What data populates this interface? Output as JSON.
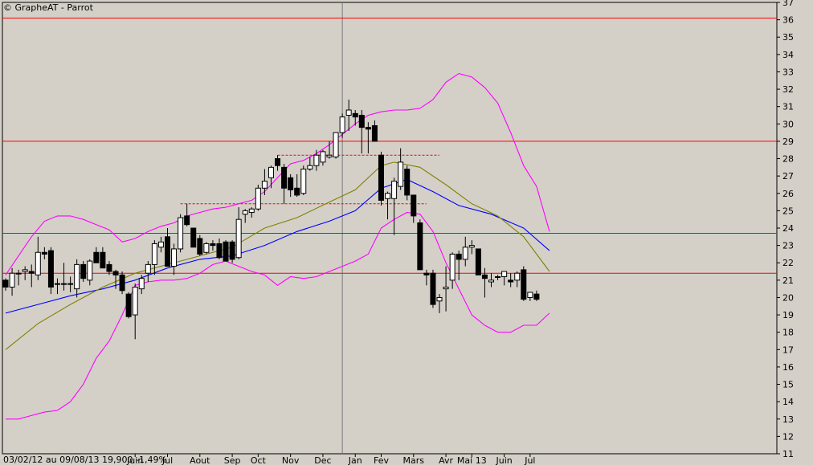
{
  "header": {
    "title": "© GrapheAT - Parrot"
  },
  "footer": {
    "info": "03/02/12 au 09/08/13  19,900  -1,49%"
  },
  "chart_data": {
    "type": "candlestick",
    "title": "© GrapheAT - Parrot",
    "ylim": [
      11,
      37
    ],
    "y_ticks": [
      11,
      12,
      13,
      14,
      15,
      16,
      17,
      18,
      19,
      20,
      21,
      22,
      23,
      24,
      25,
      26,
      27,
      28,
      29,
      30,
      31,
      32,
      33,
      34,
      35,
      36,
      37
    ],
    "x_tick_labels": [
      {
        "label": "Juin",
        "week": 20
      },
      {
        "label": "Jul",
        "week": 25
      },
      {
        "label": "Aout",
        "week": 30
      },
      {
        "label": "Sep",
        "week": 35
      },
      {
        "label": "Oct",
        "week": 39
      },
      {
        "label": "Nov",
        "week": 44
      },
      {
        "label": "Dec",
        "week": 49
      },
      {
        "label": "Jan",
        "week": 54
      },
      {
        "label": "Fev",
        "week": 58
      },
      {
        "label": "Mars",
        "week": 63
      },
      {
        "label": "Avr",
        "week": 68
      },
      {
        "label": "Mai 13",
        "week": 72
      },
      {
        "label": "Juin",
        "week": 77
      },
      {
        "label": "Jul",
        "week": 81
      }
    ],
    "year_separator_week": 52,
    "horizontal_lines": [
      36.1,
      29.0,
      23.7,
      21.4
    ],
    "dashed_lines": [
      {
        "y": 28.2,
        "from_week": 42,
        "to_week": 67
      },
      {
        "y": 25.4,
        "from_week": 27,
        "to_week": 65
      }
    ],
    "candles": [
      {
        "o": 21.0,
        "h": 21.1,
        "l": 20.4,
        "c": 20.6
      },
      {
        "o": 20.6,
        "h": 21.7,
        "l": 20.1,
        "c": 21.4
      },
      {
        "o": 21.4,
        "h": 21.6,
        "l": 20.7,
        "c": 21.4
      },
      {
        "o": 21.5,
        "h": 21.8,
        "l": 21.0,
        "c": 21.6
      },
      {
        "o": 21.5,
        "h": 21.9,
        "l": 20.6,
        "c": 21.4
      },
      {
        "o": 21.3,
        "h": 23.5,
        "l": 21.0,
        "c": 22.6
      },
      {
        "o": 22.6,
        "h": 22.9,
        "l": 22.2,
        "c": 22.5
      },
      {
        "o": 22.7,
        "h": 22.9,
        "l": 20.2,
        "c": 20.6
      },
      {
        "o": 20.8,
        "h": 21.1,
        "l": 20.2,
        "c": 20.8
      },
      {
        "o": 20.8,
        "h": 22.0,
        "l": 20.4,
        "c": 20.8
      },
      {
        "o": 20.8,
        "h": 21.2,
        "l": 20.3,
        "c": 20.8
      },
      {
        "o": 20.5,
        "h": 22.2,
        "l": 20.0,
        "c": 21.9
      },
      {
        "o": 21.9,
        "h": 22.1,
        "l": 20.9,
        "c": 21.1
      },
      {
        "o": 21.0,
        "h": 22.2,
        "l": 20.7,
        "c": 22.1
      },
      {
        "o": 22.6,
        "h": 22.9,
        "l": 22.1,
        "c": 22.0
      },
      {
        "o": 22.6,
        "h": 22.9,
        "l": 21.9,
        "c": 21.7
      },
      {
        "o": 21.9,
        "h": 22.1,
        "l": 21.3,
        "c": 21.5
      },
      {
        "o": 21.5,
        "h": 21.6,
        "l": 20.5,
        "c": 21.3
      },
      {
        "o": 21.3,
        "h": 21.5,
        "l": 20.2,
        "c": 20.4
      },
      {
        "o": 20.2,
        "h": 20.3,
        "l": 18.8,
        "c": 18.9
      },
      {
        "o": 19.0,
        "h": 20.8,
        "l": 17.6,
        "c": 20.6
      },
      {
        "o": 20.5,
        "h": 21.3,
        "l": 20.2,
        "c": 21.1
      },
      {
        "o": 21.4,
        "h": 22.1,
        "l": 20.9,
        "c": 21.9
      },
      {
        "o": 21.9,
        "h": 23.3,
        "l": 21.3,
        "c": 23.1
      },
      {
        "o": 22.9,
        "h": 23.5,
        "l": 22.6,
        "c": 23.2
      },
      {
        "o": 23.5,
        "h": 24.0,
        "l": 21.8,
        "c": 21.8
      },
      {
        "o": 21.8,
        "h": 23.1,
        "l": 21.3,
        "c": 22.8
      },
      {
        "o": 22.8,
        "h": 24.8,
        "l": 22.6,
        "c": 24.6
      },
      {
        "o": 24.7,
        "h": 25.4,
        "l": 24.1,
        "c": 24.2
      },
      {
        "o": 24.0,
        "h": 24.0,
        "l": 22.9,
        "c": 22.9
      },
      {
        "o": 23.4,
        "h": 23.6,
        "l": 22.4,
        "c": 22.5
      },
      {
        "o": 22.6,
        "h": 23.2,
        "l": 22.5,
        "c": 23.1
      },
      {
        "o": 23.1,
        "h": 23.3,
        "l": 22.7,
        "c": 23.0
      },
      {
        "o": 23.1,
        "h": 23.4,
        "l": 22.2,
        "c": 22.3
      },
      {
        "o": 23.2,
        "h": 23.3,
        "l": 22.1,
        "c": 22.1
      },
      {
        "o": 23.2,
        "h": 23.3,
        "l": 22.0,
        "c": 22.2
      },
      {
        "o": 22.3,
        "h": 25.2,
        "l": 22.2,
        "c": 24.5
      },
      {
        "o": 24.8,
        "h": 25.1,
        "l": 24.3,
        "c": 25.0
      },
      {
        "o": 24.9,
        "h": 25.2,
        "l": 24.6,
        "c": 25.1
      },
      {
        "o": 25.1,
        "h": 26.5,
        "l": 25.0,
        "c": 26.3
      },
      {
        "o": 26.3,
        "h": 27.4,
        "l": 25.9,
        "c": 26.7
      },
      {
        "o": 26.9,
        "h": 27.6,
        "l": 26.3,
        "c": 27.5
      },
      {
        "o": 28.0,
        "h": 28.2,
        "l": 27.3,
        "c": 27.6
      },
      {
        "o": 27.5,
        "h": 27.7,
        "l": 25.4,
        "c": 26.3
      },
      {
        "o": 26.9,
        "h": 27.1,
        "l": 25.8,
        "c": 26.2
      },
      {
        "o": 26.3,
        "h": 27.1,
        "l": 25.8,
        "c": 25.9
      },
      {
        "o": 26.0,
        "h": 27.6,
        "l": 25.9,
        "c": 27.4
      },
      {
        "o": 27.4,
        "h": 28.1,
        "l": 27.3,
        "c": 27.6
      },
      {
        "o": 27.6,
        "h": 28.5,
        "l": 27.3,
        "c": 28.2
      },
      {
        "o": 27.8,
        "h": 28.5,
        "l": 27.6,
        "c": 28.4
      },
      {
        "o": 28.1,
        "h": 29.0,
        "l": 28.0,
        "c": 28.2
      },
      {
        "o": 28.1,
        "h": 29.4,
        "l": 28.0,
        "c": 29.5
      },
      {
        "o": 29.5,
        "h": 30.6,
        "l": 29.2,
        "c": 30.4
      },
      {
        "o": 30.5,
        "h": 31.4,
        "l": 29.6,
        "c": 30.8
      },
      {
        "o": 30.6,
        "h": 30.8,
        "l": 29.9,
        "c": 30.4
      },
      {
        "o": 30.5,
        "h": 30.8,
        "l": 28.3,
        "c": 29.8
      },
      {
        "o": 29.8,
        "h": 30.1,
        "l": 28.3,
        "c": 29.7
      },
      {
        "o": 29.9,
        "h": 30.2,
        "l": 29.0,
        "c": 29.0
      },
      {
        "o": 28.2,
        "h": 28.4,
        "l": 25.3,
        "c": 25.6
      },
      {
        "o": 25.7,
        "h": 26.1,
        "l": 24.5,
        "c": 26.0
      },
      {
        "o": 25.7,
        "h": 26.9,
        "l": 23.6,
        "c": 26.7
      },
      {
        "o": 26.4,
        "h": 28.6,
        "l": 26.2,
        "c": 27.8
      },
      {
        "o": 27.4,
        "h": 27.6,
        "l": 25.6,
        "c": 25.9
      },
      {
        "o": 25.9,
        "h": 25.9,
        "l": 24.3,
        "c": 24.7
      },
      {
        "o": 24.3,
        "h": 24.5,
        "l": 21.6,
        "c": 21.6
      },
      {
        "o": 21.4,
        "h": 21.6,
        "l": 20.7,
        "c": 21.3
      },
      {
        "o": 21.4,
        "h": 21.6,
        "l": 19.4,
        "c": 19.6
      },
      {
        "o": 19.8,
        "h": 20.2,
        "l": 19.1,
        "c": 20.0
      },
      {
        "o": 20.5,
        "h": 21.8,
        "l": 19.2,
        "c": 20.6
      },
      {
        "o": 21.0,
        "h": 22.6,
        "l": 20.5,
        "c": 22.5
      },
      {
        "o": 22.5,
        "h": 22.7,
        "l": 21.0,
        "c": 22.2
      },
      {
        "o": 22.2,
        "h": 23.5,
        "l": 21.8,
        "c": 22.9
      },
      {
        "o": 22.9,
        "h": 23.3,
        "l": 22.5,
        "c": 23.0
      },
      {
        "o": 22.8,
        "h": 22.8,
        "l": 21.3,
        "c": 21.3
      },
      {
        "o": 21.3,
        "h": 21.7,
        "l": 20.0,
        "c": 21.1
      },
      {
        "o": 20.9,
        "h": 21.4,
        "l": 20.6,
        "c": 21.0
      },
      {
        "o": 21.2,
        "h": 21.3,
        "l": 21.0,
        "c": 21.2
      },
      {
        "o": 21.2,
        "h": 21.5,
        "l": 20.7,
        "c": 21.5
      },
      {
        "o": 21.0,
        "h": 21.4,
        "l": 20.6,
        "c": 20.9
      },
      {
        "o": 21.0,
        "h": 21.5,
        "l": 20.6,
        "c": 21.4
      },
      {
        "o": 21.6,
        "h": 21.8,
        "l": 19.8,
        "c": 19.9
      },
      {
        "o": 20.0,
        "h": 20.3,
        "l": 19.8,
        "c": 20.3
      },
      {
        "o": 20.2,
        "h": 20.4,
        "l": 19.8,
        "c": 19.9
      }
    ],
    "series": [
      {
        "color": "#ff00ff",
        "points": [
          [
            0,
            13.0
          ],
          [
            2,
            13.0
          ],
          [
            4,
            13.2
          ],
          [
            6,
            13.4
          ],
          [
            8,
            13.5
          ],
          [
            10,
            14.0
          ],
          [
            12,
            15.0
          ],
          [
            14,
            16.5
          ],
          [
            16,
            17.5
          ],
          [
            18,
            19.0
          ],
          [
            20,
            20.7
          ],
          [
            22,
            20.9
          ],
          [
            24,
            21.0
          ],
          [
            26,
            21.0
          ],
          [
            28,
            21.1
          ],
          [
            30,
            21.4
          ],
          [
            32,
            21.9
          ],
          [
            34,
            22.1
          ],
          [
            36,
            21.8
          ],
          [
            38,
            21.5
          ],
          [
            40,
            21.3
          ],
          [
            42,
            20.7
          ],
          [
            44,
            21.2
          ],
          [
            46,
            21.1
          ],
          [
            48,
            21.2
          ],
          [
            50,
            21.5
          ],
          [
            52,
            21.8
          ],
          [
            54,
            22.1
          ],
          [
            56,
            22.5
          ],
          [
            58,
            24.0
          ],
          [
            60,
            24.5
          ],
          [
            62,
            24.9
          ],
          [
            64,
            24.8
          ],
          [
            66,
            23.8
          ],
          [
            68,
            22.0
          ],
          [
            70,
            20.5
          ],
          [
            72,
            19.0
          ],
          [
            74,
            18.4
          ],
          [
            76,
            18.0
          ],
          [
            78,
            18.0
          ],
          [
            80,
            18.4
          ],
          [
            82,
            18.4
          ],
          [
            84,
            19.1
          ]
        ]
      },
      {
        "color": "#ff00ff",
        "points": [
          [
            0,
            21.3
          ],
          [
            2,
            22.4
          ],
          [
            4,
            23.5
          ],
          [
            6,
            24.4
          ],
          [
            8,
            24.7
          ],
          [
            10,
            24.7
          ],
          [
            12,
            24.5
          ],
          [
            14,
            24.2
          ],
          [
            16,
            23.9
          ],
          [
            18,
            23.2
          ],
          [
            20,
            23.4
          ],
          [
            22,
            23.8
          ],
          [
            24,
            24.1
          ],
          [
            26,
            24.3
          ],
          [
            28,
            24.7
          ],
          [
            30,
            24.9
          ],
          [
            32,
            25.1
          ],
          [
            34,
            25.2
          ],
          [
            36,
            25.4
          ],
          [
            38,
            25.6
          ],
          [
            40,
            26.1
          ],
          [
            42,
            26.9
          ],
          [
            44,
            27.7
          ],
          [
            46,
            27.9
          ],
          [
            48,
            28.3
          ],
          [
            50,
            28.8
          ],
          [
            52,
            29.4
          ],
          [
            54,
            30.0
          ],
          [
            56,
            30.5
          ],
          [
            58,
            30.7
          ],
          [
            60,
            30.8
          ],
          [
            62,
            30.8
          ],
          [
            64,
            30.9
          ],
          [
            66,
            31.4
          ],
          [
            68,
            32.4
          ],
          [
            70,
            32.9
          ],
          [
            72,
            32.7
          ],
          [
            74,
            32.1
          ],
          [
            76,
            31.2
          ],
          [
            78,
            29.5
          ],
          [
            80,
            27.6
          ],
          [
            82,
            26.4
          ],
          [
            84,
            23.8
          ]
        ]
      },
      {
        "color": "#0000ff",
        "points": [
          [
            0,
            19.1
          ],
          [
            5,
            19.6
          ],
          [
            10,
            20.1
          ],
          [
            15,
            20.5
          ],
          [
            20,
            21.0
          ],
          [
            25,
            21.7
          ],
          [
            30,
            22.2
          ],
          [
            35,
            22.4
          ],
          [
            40,
            23.0
          ],
          [
            45,
            23.8
          ],
          [
            50,
            24.4
          ],
          [
            54,
            25.0
          ],
          [
            58,
            26.3
          ],
          [
            62,
            26.8
          ],
          [
            66,
            26.1
          ],
          [
            70,
            25.3
          ],
          [
            75,
            24.8
          ],
          [
            80,
            24.0
          ],
          [
            84,
            22.7
          ]
        ]
      },
      {
        "color": "#808000",
        "points": [
          [
            0,
            17.0
          ],
          [
            5,
            18.5
          ],
          [
            10,
            19.6
          ],
          [
            15,
            20.6
          ],
          [
            20,
            21.4
          ],
          [
            25,
            21.9
          ],
          [
            30,
            22.4
          ],
          [
            35,
            22.9
          ],
          [
            40,
            24.0
          ],
          [
            45,
            24.6
          ],
          [
            50,
            25.5
          ],
          [
            54,
            26.2
          ],
          [
            58,
            27.6
          ],
          [
            60,
            27.8
          ],
          [
            64,
            27.5
          ],
          [
            68,
            26.5
          ],
          [
            72,
            25.4
          ],
          [
            76,
            24.7
          ],
          [
            80,
            23.5
          ],
          [
            84,
            21.5
          ]
        ]
      }
    ]
  }
}
